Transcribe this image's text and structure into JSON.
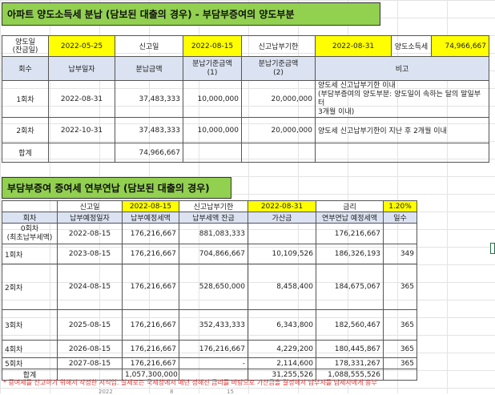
{
  "title1": "아파트 양도소득세 분납 (담보된 대출의 경우) - 부담부증여의 양도부분",
  "t1": {
    "info": {
      "transfer_label": "양도일\n(잔금일)",
      "transfer_date": "2022-05-25",
      "report_label": "신고일",
      "report_date": "2022-08-15",
      "due_label": "신고납부기한",
      "due_date": "2022-08-31",
      "tax_label": "양도소득세",
      "tax_value": "74,966,667"
    },
    "headers": [
      "회수",
      "납부일자",
      "분납금액",
      "분납기준금액\n(1)",
      "분납기준금액\n(2)",
      "비고"
    ],
    "rows": [
      {
        "round": "1회차",
        "date": "2022-08-31",
        "amount": "37,483,333",
        "base1": "10,000,000",
        "base2": "20,000,000",
        "note": "양도세 신고납부기한 이내\n(부담부증여의 양도부분: 양도일이 속하는 달의 말일부터\n3개월 이내)"
      },
      {
        "round": "2회차",
        "date": "2022-10-31",
        "amount": "37,483,333",
        "base1": "10,000,000",
        "base2": "20,000,000",
        "note": "양도세 신고납부기한이 지난 후 2개월 이내"
      }
    ],
    "total_label": "합계",
    "total_amount": "74,966,667"
  },
  "title2": "부담부증여 증여세 연부연납 (담보된 대출의 경우)",
  "t2": {
    "info": {
      "report_label": "신고일",
      "report_date": "2022-08-15",
      "due_label": "신고납부기한",
      "due_date": "2022-08-31",
      "rate_label": "금리",
      "rate_value": "1.20%"
    },
    "headers": [
      "회차",
      "납부예정일자",
      "납부예정세액",
      "납부세액 잔금",
      "가산금",
      "연부연납 예정세액",
      "일수"
    ],
    "rows": [
      {
        "round": "0회차\n(최초납부세액)",
        "date": "2022-08-15",
        "tax": "176,216,667",
        "balance": "881,083,333",
        "add": "",
        "sched": "176,216,667",
        "days": ""
      },
      {
        "round": "1회차",
        "date": "2023-08-15",
        "tax": "176,216,667",
        "balance": "704,866,667",
        "add": "10,109,526",
        "sched": "186,326,193",
        "days": "349"
      },
      {
        "round": "2회차",
        "date": "2024-08-15",
        "tax": "176,216,667",
        "balance": "528,650,000",
        "add": "8,458,400",
        "sched": "184,675,067",
        "days": "365"
      },
      {
        "round": "3회차",
        "date": "2025-08-15",
        "tax": "176,216,667",
        "balance": "352,433,333",
        "add": "6,343,800",
        "sched": "182,560,467",
        "days": "365"
      },
      {
        "round": "4회차",
        "date": "2026-08-15",
        "tax": "176,216,667",
        "balance": "176,216,667",
        "add": "4,229,200",
        "sched": "180,445,867",
        "days": "365"
      },
      {
        "round": "5회차",
        "date": "2027-08-15",
        "tax": "176,216,667",
        "balance": "-",
        "add": "2,114,600",
        "sched": "178,331,267",
        "days": "365"
      }
    ],
    "total_label": "합계",
    "total_tax": "1,057,300,000",
    "total_add": "31,255,526",
    "total_sched": "1,088,555,526"
  },
  "footnote": "* 증여세를 신고하기 위해서 작성한 서식임. 실제로는 국세청에서 매년 정해진 금리를 바탕으로 가산금을 결정해서 납부서를 납세자에게 송부",
  "bottom_fragments": [
    "2022",
    "8",
    "15"
  ]
}
